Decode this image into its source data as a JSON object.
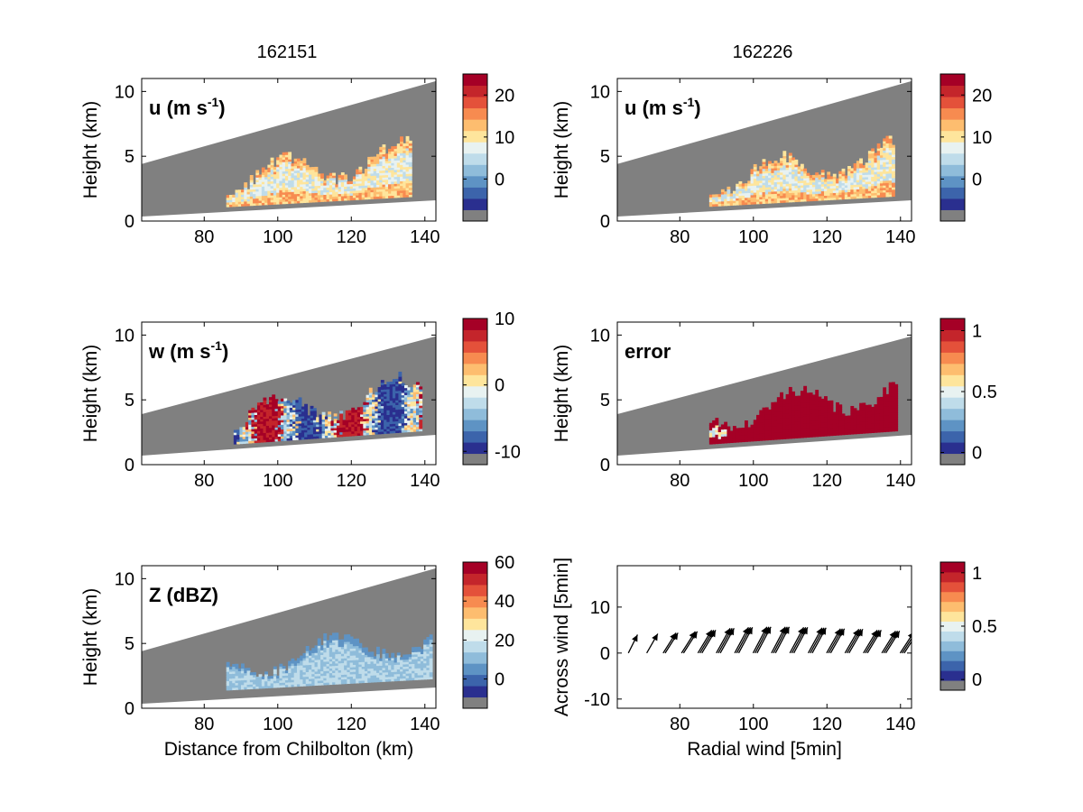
{
  "panel_label_unit": "m s",
  "panel_label_exp": "-1",
  "chart_data": [
    {
      "id": "u-162151",
      "type": "heatmap",
      "column_title": "162151",
      "label": "u",
      "label_unit": true,
      "field_kind": "u",
      "seed": 11,
      "beam_top_km": [
        4.4,
        10.8
      ],
      "beam_bottom_km": [
        0.35,
        1.6
      ],
      "echo_range_km": [
        86,
        136
      ],
      "xlim": [
        63,
        143
      ],
      "ylim": [
        0,
        11
      ],
      "xticks": [
        80,
        100,
        120,
        140
      ],
      "yticks": [
        0,
        5,
        10
      ],
      "ylabel": "Height (km)",
      "xlabel": "",
      "colorbar": {
        "ticks": [
          0,
          10,
          20
        ],
        "range": [
          -10,
          25
        ]
      }
    },
    {
      "id": "u-162226",
      "type": "heatmap",
      "column_title": "162226",
      "label": "u",
      "label_unit": true,
      "field_kind": "u",
      "seed": 23,
      "beam_top_km": [
        4.4,
        10.8
      ],
      "beam_bottom_km": [
        0.35,
        1.6
      ],
      "echo_range_km": [
        88,
        138
      ],
      "xlim": [
        63,
        143
      ],
      "ylim": [
        0,
        11
      ],
      "xticks": [
        80,
        100,
        120,
        140
      ],
      "yticks": [
        0,
        5,
        10
      ],
      "ylabel": "Height (km)",
      "xlabel": "",
      "colorbar": {
        "ticks": [
          0,
          10,
          20
        ],
        "range": [
          -10,
          25
        ]
      }
    },
    {
      "id": "w-162151",
      "type": "heatmap",
      "column_title": "",
      "label": "w",
      "label_unit": true,
      "field_kind": "w",
      "seed": 37,
      "beam_top_km": [
        3.9,
        9.9
      ],
      "beam_bottom_km": [
        0.7,
        2.3
      ],
      "echo_range_km": [
        88,
        139
      ],
      "xlim": [
        63,
        143
      ],
      "ylim": [
        0,
        11
      ],
      "xticks": [
        80,
        100,
        120,
        140
      ],
      "yticks": [
        0,
        5,
        10
      ],
      "ylabel": "Height (km)",
      "xlabel": "",
      "colorbar": {
        "ticks": [
          -10,
          0,
          10
        ],
        "range": [
          -12,
          10
        ]
      }
    },
    {
      "id": "error-162226",
      "type": "heatmap",
      "column_title": "",
      "label": "error",
      "label_unit": false,
      "field_kind": "error",
      "seed": 41,
      "beam_top_km": [
        3.9,
        9.9
      ],
      "beam_bottom_km": [
        0.7,
        2.3
      ],
      "echo_range_km": [
        88,
        139
      ],
      "xlim": [
        63,
        143
      ],
      "ylim": [
        0,
        11
      ],
      "xticks": [
        80,
        100,
        120,
        140
      ],
      "yticks": [
        0,
        5,
        10
      ],
      "ylabel": "Height (km)",
      "xlabel": "",
      "colorbar": {
        "ticks": [
          0,
          0.5,
          1
        ],
        "range": [
          -0.1,
          1.1
        ]
      }
    },
    {
      "id": "z-162151",
      "type": "heatmap",
      "column_title": "",
      "label": "Z (dBZ)",
      "label_unit": false,
      "field_kind": "z",
      "seed": 53,
      "beam_top_km": [
        4.4,
        10.8
      ],
      "beam_bottom_km": [
        0.35,
        1.6
      ],
      "echo_range_km": [
        86,
        142
      ],
      "xlim": [
        63,
        143
      ],
      "ylim": [
        0,
        11
      ],
      "xticks": [
        80,
        100,
        120,
        140
      ],
      "yticks": [
        0,
        5,
        10
      ],
      "ylabel": "Height (km)",
      "xlabel": "Distance from Chilbolton (km)",
      "colorbar": {
        "ticks": [
          0,
          20,
          40,
          60
        ],
        "range": [
          -15,
          60
        ]
      }
    },
    {
      "id": "wind-162226",
      "type": "scatter",
      "column_title": "",
      "label": "",
      "label_unit": false,
      "xlim": [
        63,
        143
      ],
      "ylim": [
        -12,
        19
      ],
      "xticks": [
        80,
        100,
        120,
        140
      ],
      "yticks": [
        -10,
        0,
        10
      ],
      "ylabel": "Across wind [5min]",
      "xlabel": "Radial wind [5min]",
      "arrows": [
        {
          "x": 66,
          "y": 0,
          "dx": 2.0,
          "dy": 4.0,
          "n": 1
        },
        {
          "x": 71,
          "y": 0,
          "dx": 2.4,
          "dy": 4.2,
          "n": 1
        },
        {
          "x": 76,
          "y": 0,
          "dx": 2.8,
          "dy": 4.4,
          "n": 2
        },
        {
          "x": 81,
          "y": 0,
          "dx": 3.0,
          "dy": 4.7,
          "n": 2
        },
        {
          "x": 86,
          "y": 0,
          "dx": 3.0,
          "dy": 5.0,
          "n": 3
        },
        {
          "x": 91,
          "y": 0,
          "dx": 3.0,
          "dy": 5.4,
          "n": 3
        },
        {
          "x": 96,
          "y": 0,
          "dx": 3.0,
          "dy": 5.6,
          "n": 3
        },
        {
          "x": 101,
          "y": 0,
          "dx": 3.0,
          "dy": 5.7,
          "n": 3
        },
        {
          "x": 106,
          "y": 0,
          "dx": 3.0,
          "dy": 5.7,
          "n": 3
        },
        {
          "x": 111,
          "y": 0,
          "dx": 3.0,
          "dy": 5.6,
          "n": 3
        },
        {
          "x": 116,
          "y": 0,
          "dx": 3.0,
          "dy": 5.5,
          "n": 3
        },
        {
          "x": 121,
          "y": 0,
          "dx": 3.0,
          "dy": 5.3,
          "n": 3
        },
        {
          "x": 126,
          "y": 0,
          "dx": 3.0,
          "dy": 5.2,
          "n": 3
        },
        {
          "x": 131,
          "y": 0,
          "dx": 3.0,
          "dy": 5.0,
          "n": 3
        },
        {
          "x": 136,
          "y": 0,
          "dx": 3.0,
          "dy": 4.8,
          "n": 3
        },
        {
          "x": 141,
          "y": 0,
          "dx": 3.0,
          "dy": 4.6,
          "n": 3
        }
      ],
      "colorbar": {
        "ticks": [
          0,
          0.5,
          1
        ],
        "range": [
          -0.1,
          1.1
        ]
      }
    }
  ],
  "colormap": [
    "#808080",
    "#2a2f8f",
    "#3c64ab",
    "#5e93c4",
    "#8fbcda",
    "#bfdcea",
    "#e8f2f1",
    "#fee59c",
    "#fdbd6f",
    "#f78b50",
    "#e4513a",
    "#c4252b",
    "#a50026"
  ]
}
